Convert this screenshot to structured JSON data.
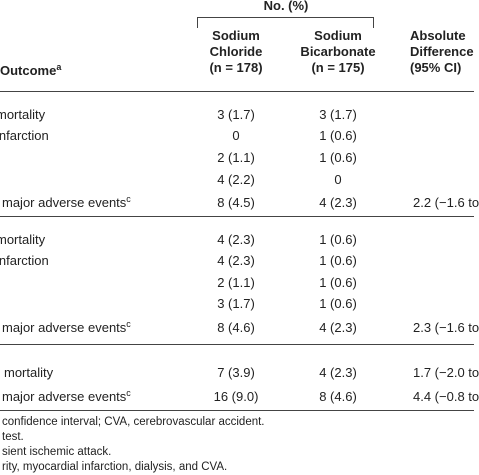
{
  "header": {
    "group": "No. (%)",
    "outcome": "Outcome",
    "outcome_note": "a",
    "columns": [
      {
        "lines": [
          "Sodium",
          "Chloride",
          "(n = 178)"
        ]
      },
      {
        "lines": [
          "Sodium",
          "Bicarbonate",
          "(n = 175)"
        ]
      },
      {
        "lines": [
          "Absolute",
          "Difference",
          "(95% CI)"
        ]
      }
    ]
  },
  "rows": [
    {
      "label": "mortality",
      "chloride": "3 (1.7)",
      "bicarbonate": "3 (1.7)"
    },
    {
      "label": "infarction",
      "chloride": "0",
      "bicarbonate": "1 (0.6)"
    },
    {
      "chloride": "2 (1.1)",
      "bicarbonate": "1 (0.6)"
    },
    {
      "chloride": "4 (2.2)",
      "bicarbonate": "0"
    },
    {
      "label": "major adverse events",
      "note": "c",
      "chloride": "8 (4.5)",
      "bicarbonate": "4 (2.3)",
      "difference": "2.2 (−1.6 to"
    },
    {
      "label": "mortality",
      "chloride": "4 (2.3)",
      "bicarbonate": "1 (0.6)"
    },
    {
      "label": "infarction",
      "chloride": "4 (2.3)",
      "bicarbonate": "1 (0.6)"
    },
    {
      "chloride": "2 (1.1)",
      "bicarbonate": "1 (0.6)"
    },
    {
      "chloride": "3 (1.7)",
      "bicarbonate": "1 (0.6)"
    },
    {
      "label": "major adverse events",
      "note": "c",
      "chloride": "8 (4.6)",
      "bicarbonate": "4 (2.3)",
      "difference": "2.3 (−1.6 to"
    },
    {
      "label": "mortality",
      "chloride": "7 (3.9)",
      "bicarbonate": "4 (2.3)",
      "difference": "1.7 (−2.0 to"
    },
    {
      "label": "major adverse events",
      "note": "c",
      "chloride": "16 (9.0)",
      "bicarbonate": "8 (4.6)",
      "difference": "4.4 (−0.8 to"
    }
  ],
  "footnotes": [
    "confidence interval; CVA, cerebrovascular accident.",
    "test.",
    "sient ischemic attack.",
    "rity, myocardial infarction, dialysis, and CVA."
  ]
}
